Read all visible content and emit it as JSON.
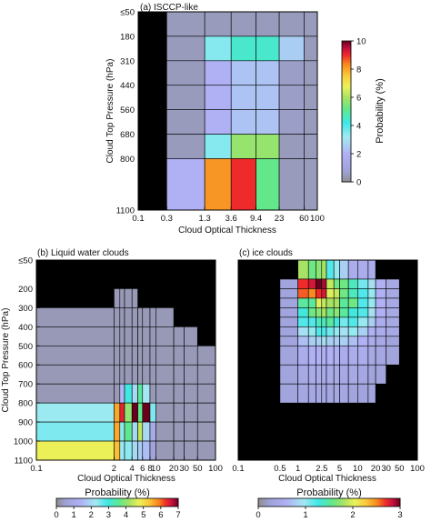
{
  "colormap": {
    "stops": [
      [
        0.0,
        "#8e8e8e"
      ],
      [
        0.08,
        "#9fa3d8"
      ],
      [
        0.2,
        "#b0b0f4"
      ],
      [
        0.32,
        "#a4e9f2"
      ],
      [
        0.42,
        "#3ee8e8"
      ],
      [
        0.52,
        "#62e88a"
      ],
      [
        0.6,
        "#a8e264"
      ],
      [
        0.68,
        "#eaf25a"
      ],
      [
        0.76,
        "#fbc83a"
      ],
      [
        0.84,
        "#f7851e"
      ],
      [
        0.9,
        "#ef2a2a"
      ],
      [
        0.95,
        "#c2103e"
      ],
      [
        1.0,
        "#6b001c"
      ]
    ],
    "missing_color": "#000000"
  },
  "chart_data": [
    {
      "type": "heatmap",
      "panel_label": "(a) ISCCP-like",
      "xlabel": "Cloud Optical Thickness",
      "ylabel": "Cloud Top Pressure (hPa)",
      "x_edges": [
        0.1,
        0.3,
        1.3,
        3.6,
        9.4,
        23,
        60,
        100
      ],
      "x_tick_labels": [
        "0.1",
        "0.3",
        "1.3",
        "3.6",
        "9.4",
        "23",
        "60",
        "100"
      ],
      "y_edges": [
        50,
        180,
        310,
        440,
        560,
        680,
        800,
        1100
      ],
      "y_tick_labels": [
        "≤50",
        "180",
        "310",
        "440",
        "560",
        "680",
        "800",
        "1100"
      ],
      "values": [
        [
          null,
          0.5,
          0.5,
          0.5,
          0.5,
          0.5,
          0.5
        ],
        [
          null,
          0.5,
          3.5,
          4.5,
          4.5,
          2.6,
          0.5
        ],
        [
          null,
          0.5,
          2.0,
          2.4,
          2.4,
          0.6,
          0.5
        ],
        [
          null,
          0.5,
          2.0,
          2.4,
          2.4,
          0.6,
          0.5
        ],
        [
          null,
          0.5,
          2.0,
          2.4,
          2.4,
          0.6,
          0.5
        ],
        [
          null,
          0.5,
          3.5,
          5.8,
          5.8,
          0.5,
          0.5
        ],
        [
          null,
          2.0,
          8.2,
          9.0,
          5.2,
          0.5,
          0.5
        ]
      ],
      "colorbar": {
        "label": "Probability (%)",
        "min": 0,
        "max": 10,
        "ticks": [
          0,
          2,
          4,
          6,
          8,
          10
        ],
        "tick_labels": [
          "0",
          "2",
          "4",
          "6",
          "8",
          "10"
        ]
      }
    },
    {
      "type": "heatmap",
      "panel_label": "(b) Liquid water clouds",
      "xlabel": "Cloud Optical Thickness",
      "ylabel": "Cloud Top Pressure (hPa)",
      "x_edges": [
        0.1,
        2,
        2.5,
        3,
        4,
        5,
        6,
        8,
        10,
        20,
        30,
        50,
        100
      ],
      "x_tick_labels": [
        "0.1",
        "2",
        "4",
        "6",
        "8",
        "10",
        "20",
        "30",
        "50",
        "100"
      ],
      "x_tick_values": [
        0.1,
        2,
        4,
        6,
        8,
        10,
        20,
        30,
        50,
        100
      ],
      "y_edges": [
        50,
        200,
        300,
        400,
        500,
        600,
        700,
        800,
        900,
        1000,
        1100
      ],
      "y_tick_labels": [
        "≤50",
        "200",
        "300",
        "400",
        "500",
        "600",
        "700",
        "800",
        "900",
        "1000",
        "1100"
      ],
      "values": [
        [
          null,
          null,
          null,
          null,
          null,
          null,
          null,
          null,
          null,
          null,
          null,
          null
        ],
        [
          null,
          0.3,
          0.3,
          0.3,
          0.3,
          null,
          null,
          null,
          null,
          null,
          null,
          null
        ],
        [
          0.3,
          0.3,
          0.3,
          0.3,
          0.3,
          0.3,
          0.3,
          0.3,
          0.3,
          null,
          null,
          null
        ],
        [
          0.3,
          0.3,
          0.3,
          0.3,
          0.3,
          0.3,
          0.3,
          0.3,
          0.3,
          0.3,
          0.3,
          null
        ],
        [
          0.3,
          0.3,
          0.3,
          0.3,
          0.3,
          0.3,
          0.3,
          0.3,
          0.3,
          0.3,
          0.3,
          0.3
        ],
        [
          0.3,
          0.3,
          0.3,
          0.3,
          0.3,
          0.3,
          0.3,
          0.3,
          0.3,
          0.3,
          0.3,
          0.3
        ],
        [
          0.3,
          0.3,
          1.5,
          3.0,
          2.0,
          3.5,
          2.2,
          0.3,
          0.3,
          0.3,
          0.3,
          0.3
        ],
        [
          2.3,
          5.6,
          6.4,
          4.0,
          7.0,
          3.6,
          7.0,
          2.5,
          0.3,
          0.3,
          0.3,
          0.3
        ],
        [
          2.5,
          5.6,
          2.4,
          3.6,
          2.0,
          4.4,
          2.0,
          1.0,
          0.3,
          0.3,
          0.3,
          0.3
        ],
        [
          4.8,
          5.4,
          2.3,
          2.4,
          2.0,
          1.8,
          1.6,
          0.6,
          0.3,
          0.3,
          0.3,
          0.3
        ]
      ],
      "colorbar": {
        "label": "Probability (%)",
        "min": 0,
        "max": 7,
        "ticks": [
          0,
          1,
          2,
          3,
          4,
          5,
          6,
          7
        ],
        "tick_labels": [
          "0",
          "1",
          "2",
          "3",
          "4",
          "5",
          "6",
          "7"
        ]
      }
    },
    {
      "type": "heatmap",
      "panel_label": "(c) ice clouds",
      "xlabel": "Cloud Optical Thickness",
      "ylabel": "",
      "x_edges": [
        0.1,
        0.5,
        1,
        1.5,
        2,
        2.5,
        3,
        4,
        5,
        7,
        10,
        15,
        20,
        30,
        50,
        100
      ],
      "x_tick_labels": [
        "0.1",
        "0.5",
        "1",
        "2.5",
        "5",
        "10",
        "20",
        "30",
        "50",
        "100"
      ],
      "x_tick_values": [
        0.1,
        0.5,
        1,
        2.5,
        5,
        10,
        20,
        30,
        50,
        100
      ],
      "y_edges": [
        50,
        150,
        200,
        250,
        300,
        350,
        400,
        450,
        500,
        600,
        700,
        800,
        900,
        1000,
        1100
      ],
      "y_tick_labels": [
        "≤50",
        "200",
        "300",
        "400",
        "500",
        "600",
        "700",
        "800",
        "900",
        "1000",
        "1100"
      ],
      "y_tick_values": [
        50,
        200,
        300,
        400,
        500,
        600,
        700,
        800,
        900,
        1000,
        1100
      ],
      "values": [
        [
          null,
          null,
          1.8,
          1.6,
          1.7,
          1.8,
          1.2,
          1.0,
          0.8,
          0.5,
          0.5,
          0.5,
          null,
          null,
          null
        ],
        [
          null,
          0.3,
          2.7,
          2.8,
          3.0,
          2.9,
          1.9,
          1.6,
          1.6,
          1.4,
          1.1,
          0.9,
          0.6,
          0.4,
          null
        ],
        [
          null,
          0.3,
          2.6,
          2.5,
          2.7,
          2.8,
          2.0,
          1.9,
          1.6,
          1.4,
          1.2,
          1.0,
          0.6,
          0.4,
          null
        ],
        [
          null,
          0.3,
          1.5,
          1.5,
          2.0,
          1.9,
          1.8,
          1.8,
          1.5,
          1.6,
          1.2,
          1.0,
          0.6,
          0.4,
          null
        ],
        [
          null,
          0.3,
          1.3,
          1.6,
          1.7,
          1.8,
          1.6,
          1.7,
          1.5,
          1.3,
          1.2,
          0.9,
          0.6,
          0.4,
          null
        ],
        [
          null,
          0.3,
          1.2,
          1.2,
          1.4,
          1.4,
          1.5,
          1.3,
          1.1,
          1.2,
          1.0,
          0.8,
          0.5,
          0.4,
          null
        ],
        [
          null,
          0.3,
          0.9,
          1.0,
          1.2,
          1.2,
          1.1,
          1.0,
          0.9,
          1.0,
          0.8,
          0.6,
          0.5,
          0.4,
          null
        ],
        [
          null,
          0.3,
          0.7,
          0.8,
          0.8,
          0.9,
          0.8,
          0.8,
          0.8,
          0.7,
          0.6,
          0.5,
          0.4,
          0.3,
          null
        ],
        [
          null,
          0.3,
          0.5,
          0.6,
          0.6,
          0.6,
          0.6,
          0.6,
          0.5,
          0.5,
          0.5,
          0.4,
          0.35,
          0.3,
          null
        ],
        [
          null,
          0.3,
          0.4,
          0.45,
          0.45,
          0.45,
          0.45,
          0.45,
          0.4,
          0.4,
          0.35,
          0.3,
          0.3,
          null,
          null
        ],
        [
          null,
          0.3,
          0.35,
          0.35,
          0.35,
          0.35,
          0.35,
          0.35,
          0.35,
          0.3,
          0.3,
          0.3,
          null,
          null,
          null
        ],
        [
          null,
          null,
          null,
          null,
          null,
          null,
          null,
          null,
          null,
          null,
          null,
          null,
          null,
          null,
          null
        ],
        [
          null,
          null,
          null,
          null,
          null,
          null,
          null,
          null,
          null,
          null,
          null,
          null,
          null,
          null,
          null
        ],
        [
          null,
          null,
          null,
          null,
          null,
          null,
          null,
          null,
          null,
          null,
          null,
          null,
          null,
          null,
          null
        ]
      ],
      "colorbar": {
        "label": "Probability (%)",
        "min": 0,
        "max": 3,
        "ticks": [
          0,
          1,
          2,
          3
        ],
        "tick_labels": [
          "0",
          "1",
          "2",
          "3"
        ]
      }
    }
  ]
}
